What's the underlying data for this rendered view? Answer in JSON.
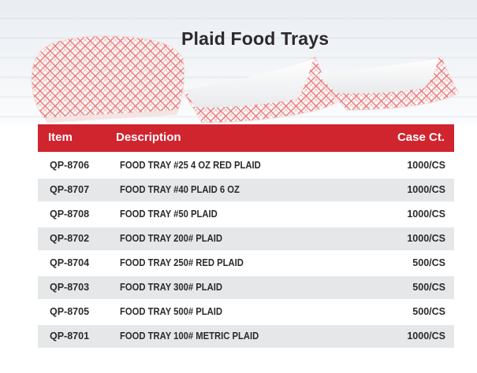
{
  "title": "Plaid Food Trays",
  "colors": {
    "header_red": "#d0242f",
    "row_shade": "#e6e7e9",
    "plaid_red": "#e05a5a"
  },
  "table": {
    "headers": {
      "item": "Item",
      "description": "Description",
      "case": "Case Ct."
    },
    "rows": [
      {
        "item": "QP-8706",
        "description": "FOOD TRAY #25 4 OZ RED PLAID",
        "case": "1000/CS"
      },
      {
        "item": "QP-8707",
        "description": "FOOD TRAY #40 PLAID 6 OZ",
        "case": "1000/CS"
      },
      {
        "item": "QP-8708",
        "description": "FOOD TRAY #50 PLAID",
        "case": "1000/CS"
      },
      {
        "item": "QP-8702",
        "description": "FOOD TRAY 200# PLAID",
        "case": "1000/CS"
      },
      {
        "item": "QP-8704",
        "description": "FOOD TRAY 250# RED PLAID",
        "case": "500/CS"
      },
      {
        "item": "QP-8703",
        "description": "FOOD TRAY 300# PLAID",
        "case": "500/CS"
      },
      {
        "item": "QP-8705",
        "description": "FOOD TRAY 500# PLAID",
        "case": "500/CS"
      },
      {
        "item": "QP-8701",
        "description": "FOOD TRAY 100# METRIC PLAID",
        "case": "1000/CS"
      }
    ]
  }
}
